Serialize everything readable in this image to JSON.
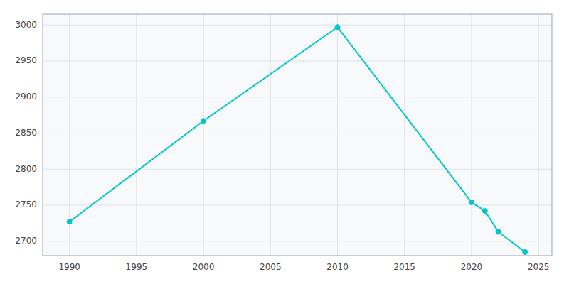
{
  "chart_data": {
    "type": "line",
    "x": [
      1990,
      2000,
      2010,
      2020,
      2021,
      2022,
      2024
    ],
    "values": [
      2727,
      2867,
      2997,
      2754,
      2742,
      2713,
      2685
    ],
    "color": "#00c8c8",
    "marker": "circle",
    "xlim": [
      1988,
      2026
    ],
    "ylim": [
      2680,
      3015
    ],
    "xticks": [
      1990,
      1995,
      2000,
      2005,
      2010,
      2015,
      2020,
      2025
    ],
    "yticks": [
      2700,
      2750,
      2800,
      2850,
      2900,
      2950,
      3000
    ],
    "grid": true
  }
}
